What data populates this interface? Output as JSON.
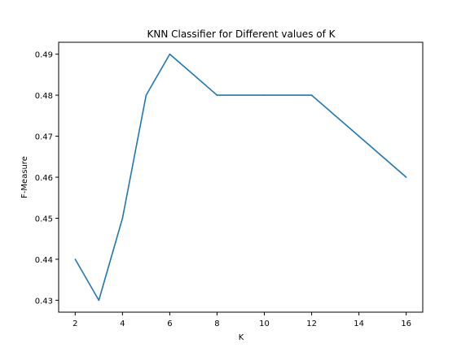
{
  "chart_data": {
    "type": "line",
    "title": "KNN Classifier for Different values of K",
    "xlabel": "K",
    "ylabel": "F-Measure",
    "x": [
      2,
      3,
      4,
      5,
      6,
      8,
      10,
      12,
      14,
      16
    ],
    "series": [
      {
        "values": [
          0.44,
          0.43,
          0.45,
          0.48,
          0.49,
          0.48,
          0.48,
          0.48,
          0.47,
          0.46
        ],
        "color": "#1f77b4"
      }
    ],
    "xlim": [
      1.3,
      16.7
    ],
    "ylim": [
      0.4271,
      0.4929
    ],
    "xticks": [
      2,
      4,
      6,
      8,
      10,
      12,
      14,
      16
    ],
    "yticks": [
      0.43,
      0.44,
      0.45,
      0.46,
      0.47,
      0.48,
      0.49
    ],
    "xtick_labels": [
      "2",
      "4",
      "6",
      "8",
      "10",
      "12",
      "14",
      "16"
    ],
    "ytick_labels": [
      "0.43",
      "0.44",
      "0.45",
      "0.46",
      "0.47",
      "0.48",
      "0.49"
    ],
    "grid": false,
    "legend": "none"
  }
}
